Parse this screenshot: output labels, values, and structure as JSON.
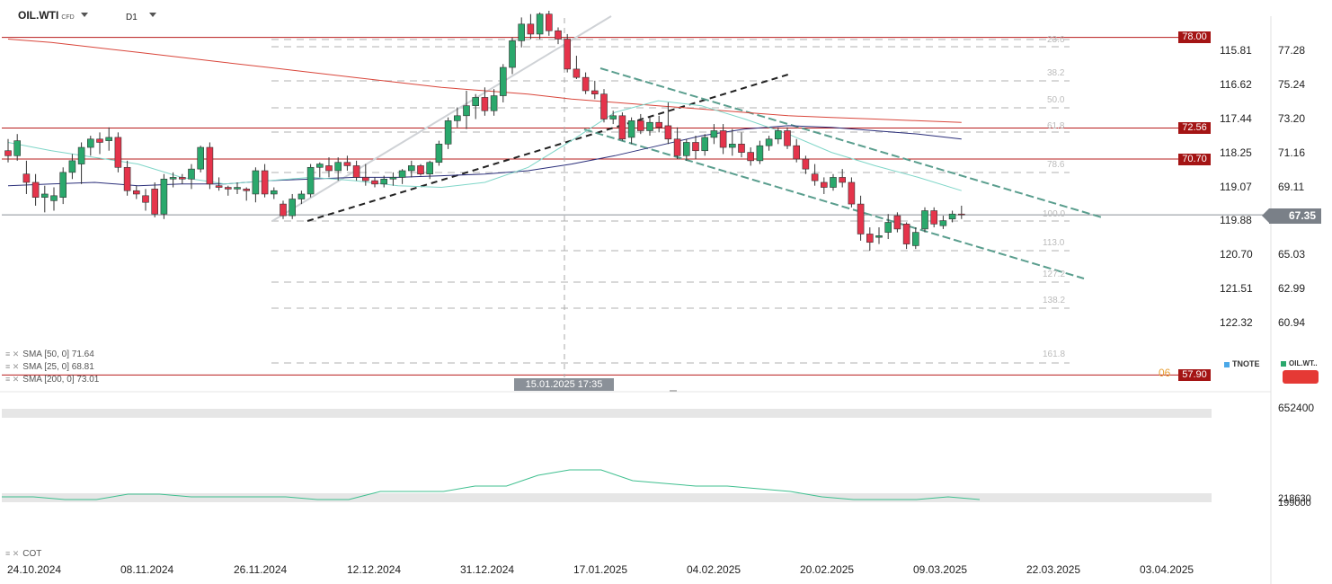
{
  "header": {
    "symbol": "OIL.WTI",
    "symbol_tag": "CFD",
    "timeframe": "D1"
  },
  "indicators": [
    {
      "label": "SMA [50, 0] 71.64",
      "color": "#2b2f7a"
    },
    {
      "label": "SMA [25, 0] 68.81",
      "color": "#7fd6c8"
    },
    {
      "label": "SMA [200, 0] 73.01",
      "color": "#d9463b"
    }
  ],
  "sub_indicator": "COT",
  "levels": [
    {
      "label": "78.00",
      "value": 78.0
    },
    {
      "label": "72.56",
      "value": 72.56
    },
    {
      "label": "70.70",
      "value": 70.7
    },
    {
      "label": "57.90",
      "value": 57.9
    }
  ],
  "last_price": "67.35",
  "crosshair_date": "15.01.2025 17:35",
  "level_prefix": "06",
  "fib_labels": [
    "23.6",
    "38.2",
    "50.0",
    "61.8",
    "78.6",
    "100.0",
    "113.0",
    "127.2",
    "138.2",
    "161.8"
  ],
  "legend_symbols": [
    {
      "name": "TNOTE",
      "color": "#4aa8e8"
    },
    {
      "name": "OIL.WT..",
      "color": "#2aa86c"
    }
  ],
  "cot_axis": {
    "top": "652400",
    "low1": "218630",
    "low2": "199000"
  },
  "chart_data": {
    "type": "candlestick",
    "axis_right": [
      "77.28",
      "75.24",
      "73.20",
      "71.16",
      "69.11",
      "67.35",
      "65.03",
      "62.99",
      "60.94"
    ],
    "axis_left": [
      "115.81",
      "116.62",
      "117.44",
      "118.25",
      "119.07",
      "119.88",
      "120.70",
      "121.51",
      "122.32"
    ],
    "x_labels": [
      "24.10.2024",
      "08.11.2024",
      "26.11.2024",
      "12.12.2024",
      "31.12.2024",
      "17.01.2025",
      "04.02.2025",
      "20.02.2025",
      "09.03.2025",
      "22.03.2025",
      "03.04.2025"
    ],
    "candles": [
      [
        71.2,
        71.9,
        70.5,
        70.9
      ],
      [
        70.9,
        72.2,
        70.6,
        71.8
      ],
      [
        69.8,
        70.6,
        68.6,
        69.3
      ],
      [
        69.3,
        69.8,
        67.9,
        68.4
      ],
      [
        68.4,
        69.1,
        67.5,
        68.6
      ],
      [
        68.2,
        69.0,
        67.6,
        68.5
      ],
      [
        68.4,
        70.2,
        68.0,
        69.9
      ],
      [
        69.9,
        71.0,
        69.5,
        70.6
      ],
      [
        70.4,
        71.7,
        69.2,
        71.4
      ],
      [
        71.4,
        72.1,
        70.9,
        71.9
      ],
      [
        71.9,
        72.3,
        71.0,
        71.7
      ],
      [
        71.8,
        72.6,
        71.2,
        72.0
      ],
      [
        72.0,
        72.3,
        69.9,
        70.2
      ],
      [
        70.2,
        70.6,
        68.5,
        68.8
      ],
      [
        68.8,
        69.1,
        68.3,
        68.6
      ],
      [
        68.5,
        68.9,
        67.6,
        68.1
      ],
      [
        68.9,
        69.3,
        67.2,
        67.4
      ],
      [
        67.4,
        69.8,
        67.1,
        69.5
      ],
      [
        69.5,
        69.9,
        69.0,
        69.6
      ],
      [
        69.6,
        69.8,
        69.2,
        69.5
      ],
      [
        69.5,
        70.4,
        68.9,
        70.1
      ],
      [
        70.1,
        71.5,
        69.9,
        71.4
      ],
      [
        71.4,
        71.7,
        68.9,
        69.2
      ],
      [
        69.1,
        69.6,
        68.8,
        69.0
      ],
      [
        69.0,
        69.1,
        68.5,
        68.9
      ],
      [
        68.9,
        69.3,
        68.6,
        69.0
      ],
      [
        68.9,
        69.0,
        68.2,
        68.8
      ],
      [
        68.6,
        70.2,
        68.1,
        70.0
      ],
      [
        70.0,
        70.4,
        68.4,
        68.6
      ],
      [
        68.6,
        69.0,
        68.3,
        68.8
      ],
      [
        68.0,
        68.2,
        67.1,
        67.3
      ],
      [
        67.3,
        68.6,
        67.1,
        68.3
      ],
      [
        68.3,
        68.8,
        68.0,
        68.6
      ],
      [
        68.6,
        70.4,
        68.4,
        70.2
      ],
      [
        70.2,
        70.5,
        69.6,
        70.4
      ],
      [
        70.3,
        70.8,
        69.6,
        70.0
      ],
      [
        70.0,
        70.8,
        69.4,
        70.5
      ],
      [
        70.5,
        70.9,
        70.0,
        70.3
      ],
      [
        70.3,
        70.6,
        69.4,
        69.6
      ],
      [
        69.6,
        70.4,
        69.1,
        69.4
      ],
      [
        69.4,
        69.6,
        69.0,
        69.2
      ],
      [
        69.2,
        69.7,
        69.0,
        69.5
      ],
      [
        69.5,
        69.9,
        69.1,
        69.6
      ],
      [
        69.6,
        70.1,
        69.2,
        70.0
      ],
      [
        70.0,
        70.6,
        69.6,
        70.3
      ],
      [
        70.3,
        70.4,
        69.7,
        69.8
      ],
      [
        69.8,
        70.6,
        69.5,
        70.5
      ],
      [
        70.5,
        71.8,
        70.3,
        71.6
      ],
      [
        71.6,
        73.2,
        71.3,
        73.0
      ],
      [
        73.0,
        73.8,
        72.6,
        73.3
      ],
      [
        73.3,
        74.8,
        72.5,
        73.9
      ],
      [
        73.9,
        74.6,
        73.1,
        74.4
      ],
      [
        74.4,
        75.0,
        73.3,
        73.6
      ],
      [
        73.6,
        74.9,
        73.3,
        74.5
      ],
      [
        74.5,
        76.4,
        74.1,
        76.2
      ],
      [
        76.2,
        78.0,
        75.8,
        77.8
      ],
      [
        77.8,
        79.2,
        77.4,
        78.8
      ],
      [
        78.8,
        79.4,
        77.9,
        78.2
      ],
      [
        78.2,
        79.5,
        77.9,
        79.4
      ],
      [
        79.4,
        79.6,
        78.1,
        78.4
      ],
      [
        78.4,
        78.6,
        77.6,
        77.9
      ],
      [
        77.9,
        78.2,
        75.9,
        76.1
      ],
      [
        76.1,
        76.9,
        75.5,
        75.6
      ],
      [
        75.6,
        75.9,
        74.6,
        74.8
      ],
      [
        74.8,
        75.4,
        74.3,
        74.6
      ],
      [
        74.6,
        74.9,
        72.9,
        73.1
      ],
      [
        73.1,
        73.6,
        72.8,
        73.3
      ],
      [
        73.3,
        73.5,
        71.8,
        71.9
      ],
      [
        72.0,
        73.2,
        71.6,
        73.0
      ],
      [
        73.0,
        73.4,
        72.2,
        72.4
      ],
      [
        72.4,
        73.2,
        72.1,
        72.9
      ],
      [
        72.9,
        73.3,
        72.3,
        72.6
      ],
      [
        72.7,
        74.1,
        71.6,
        71.9
      ],
      [
        71.9,
        72.6,
        70.7,
        70.9
      ],
      [
        70.9,
        71.9,
        70.6,
        71.7
      ],
      [
        71.7,
        72.1,
        70.7,
        71.2
      ],
      [
        71.2,
        72.2,
        70.9,
        72.0
      ],
      [
        72.0,
        72.8,
        71.6,
        72.4
      ],
      [
        72.4,
        72.8,
        71.0,
        71.4
      ],
      [
        71.4,
        72.5,
        70.9,
        71.6
      ],
      [
        71.6,
        72.3,
        70.8,
        71.1
      ],
      [
        71.1,
        71.4,
        70.3,
        70.6
      ],
      [
        70.6,
        71.8,
        70.4,
        71.5
      ],
      [
        71.5,
        72.1,
        71.2,
        71.9
      ],
      [
        71.9,
        72.6,
        71.6,
        72.4
      ],
      [
        72.4,
        72.6,
        71.3,
        71.5
      ],
      [
        71.5,
        71.9,
        70.5,
        70.7
      ],
      [
        70.7,
        70.9,
        69.8,
        70.1
      ],
      [
        69.8,
        70.4,
        69.1,
        69.4
      ],
      [
        69.3,
        69.6,
        68.6,
        69.0
      ],
      [
        69.0,
        69.8,
        68.8,
        69.6
      ],
      [
        69.6,
        70.1,
        69.0,
        69.3
      ],
      [
        69.3,
        69.6,
        67.8,
        68.0
      ],
      [
        68.0,
        68.5,
        65.8,
        66.2
      ],
      [
        66.2,
        66.6,
        65.2,
        65.7
      ],
      [
        66.0,
        66.6,
        65.6,
        66.1
      ],
      [
        66.3,
        67.4,
        65.9,
        66.9
      ],
      [
        67.3,
        67.5,
        66.3,
        66.5
      ],
      [
        66.8,
        66.9,
        65.3,
        65.6
      ],
      [
        65.5,
        66.6,
        65.3,
        66.3
      ],
      [
        66.5,
        67.8,
        66.3,
        67.6
      ],
      [
        67.6,
        67.8,
        66.6,
        66.8
      ],
      [
        66.7,
        67.3,
        66.5,
        67.0
      ],
      [
        67.1,
        67.6,
        66.9,
        67.4
      ],
      [
        67.4,
        67.9,
        67.1,
        67.35
      ]
    ],
    "sma50": [
      69.1,
      69.2,
      69.3,
      69.1,
      69.2,
      69.2,
      69.4,
      69.5,
      69.6,
      69.6,
      69.7,
      69.8,
      70.0,
      70.4,
      70.9,
      71.5,
      72.1,
      72.5,
      72.7,
      72.6,
      72.4,
      72.2,
      71.9
    ],
    "sma25": [
      71.7,
      71.2,
      70.8,
      70.4,
      69.6,
      69.2,
      69.4,
      69.6,
      69.4,
      69.1,
      69.0,
      69.3,
      70.2,
      71.8,
      73.5,
      74.2,
      73.9,
      73.1,
      72.2,
      71.1,
      70.3,
      69.6,
      68.8
    ],
    "sma200": [
      77.9,
      77.7,
      77.4,
      77.1,
      76.8,
      76.5,
      76.2,
      75.9,
      75.6,
      75.3,
      75.0,
      74.8,
      74.6,
      74.3,
      74.1,
      73.9,
      73.7,
      73.5,
      73.3,
      73.2,
      73.1,
      73.0,
      72.9
    ],
    "cot": [
      1,
      1,
      0,
      0,
      2,
      2,
      1,
      1,
      1,
      1,
      0,
      0,
      3,
      3,
      3,
      5,
      5,
      9,
      11,
      11,
      7,
      6,
      5,
      5,
      4,
      3,
      1,
      0,
      0,
      0,
      1,
      0
    ]
  }
}
